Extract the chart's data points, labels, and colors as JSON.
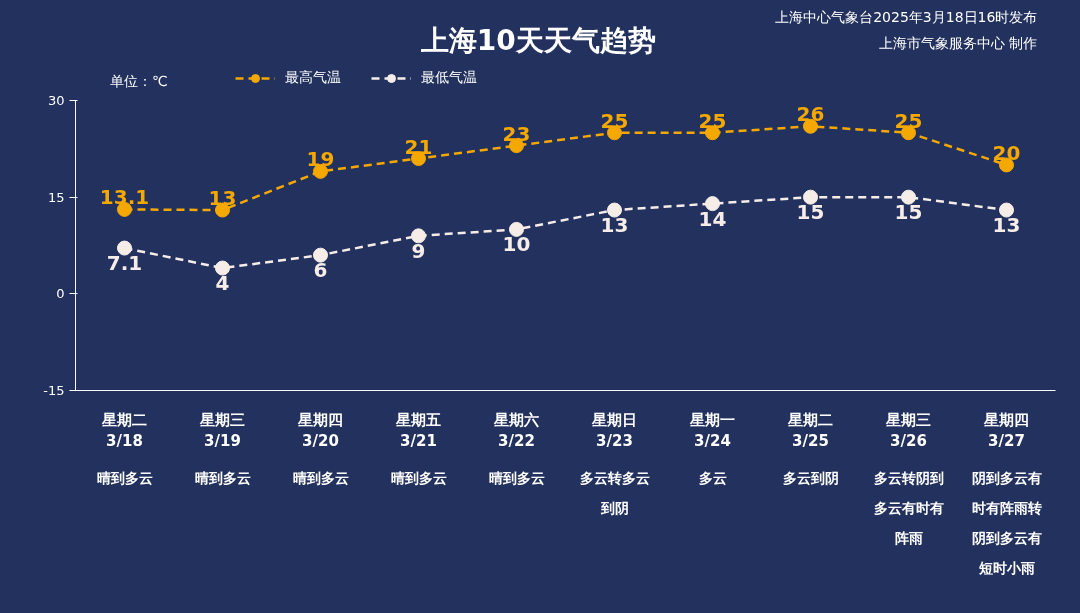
{
  "chart_data": {
    "type": "line",
    "title": "上海10天天气趋势",
    "ylabel": "单位：℃",
    "categories": [
      "星期二\n3/18",
      "星期三\n3/19",
      "星期四\n3/20",
      "星期五\n3/21",
      "星期六\n3/22",
      "星期日\n3/23",
      "星期一\n3/24",
      "星期二\n3/25",
      "星期三\n3/26",
      "星期四\n3/27"
    ],
    "series": [
      {
        "name": "最高气温",
        "color": "#f5a800",
        "values": [
          13.1,
          13,
          19,
          21,
          23,
          25,
          25,
          26,
          25,
          20
        ]
      },
      {
        "name": "最低气温",
        "color": "#f7ede8",
        "values": [
          7.1,
          4,
          6,
          9,
          10,
          13,
          14,
          15,
          15,
          13
        ]
      }
    ],
    "ylim": [
      -15,
      30
    ],
    "yticks": [
      -15,
      0,
      15,
      30
    ],
    "grid": false,
    "legend": "top left",
    "marker": "circle",
    "line_style": "dashed",
    "data_labels": true,
    "annotations": [
      "上海中心气象台2025年3月18日16时发布",
      "上海市气象服务中心 制作",
      "晴到多云",
      "晴到多云",
      "晴到多云",
      "晴到多云",
      "晴到多云",
      "多云转多云到阴",
      "多云",
      "多云到阴",
      "多云转阴到多云有时有阵雨",
      "阴到多云有时有阵雨转阴到多云有短时小雨"
    ]
  }
}
